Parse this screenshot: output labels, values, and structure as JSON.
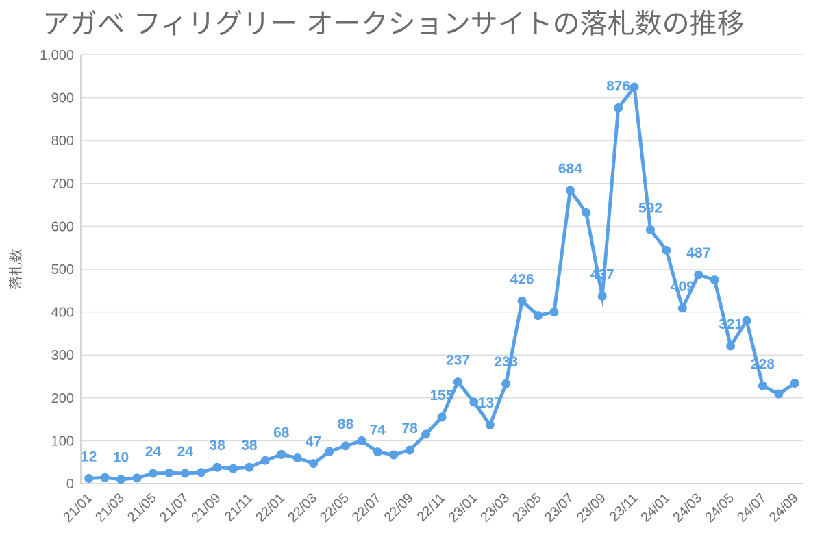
{
  "chart_data": {
    "type": "line",
    "title": "アガベ フィリグリー オークションサイトの落札数の推移",
    "xlabel": "",
    "ylabel": "落札数",
    "ylim": [
      0,
      1000
    ],
    "y_ticks": [
      "0",
      "100",
      "200",
      "300",
      "400",
      "500",
      "600",
      "700",
      "800",
      "900",
      "1,000"
    ],
    "grid": true,
    "color": "#58a0e5",
    "categories": [
      "21/01",
      "21/02",
      "21/03",
      "21/04",
      "21/05",
      "21/06",
      "21/07",
      "21/08",
      "21/09",
      "21/10",
      "21/11",
      "21/12",
      "22/01",
      "22/02",
      "22/03",
      "22/04",
      "22/05",
      "22/06",
      "22/07",
      "22/08",
      "22/09",
      "22/10",
      "22/11",
      "22/12",
      "23/01",
      "23/02",
      "23/03",
      "23/04",
      "23/05",
      "23/06",
      "23/07",
      "23/08",
      "23/09",
      "23/10",
      "23/11",
      "23/12",
      "24/01",
      "24/02",
      "24/03",
      "24/04",
      "24/05",
      "24/06",
      "24/07",
      "24/08",
      "24/09"
    ],
    "x_tick_labels": [
      "21/01",
      "21/03",
      "21/05",
      "21/07",
      "21/09",
      "21/11",
      "22/01",
      "22/03",
      "22/05",
      "22/07",
      "22/09",
      "22/11",
      "23/01",
      "23/03",
      "23/05",
      "23/07",
      "23/09",
      "23/11",
      "24/01",
      "24/03",
      "24/05",
      "24/07",
      "24/09"
    ],
    "series": [
      {
        "name": "落札数",
        "values": [
          12,
          14,
          10,
          13,
          24,
          25,
          24,
          26,
          38,
          35,
          38,
          54,
          68,
          60,
          47,
          75,
          88,
          100,
          74,
          67,
          78,
          115,
          155,
          237,
          190,
          137,
          233,
          426,
          392,
          400,
          684,
          632,
          437,
          876,
          925,
          592,
          544,
          409,
          487,
          475,
          321,
          380,
          228,
          209,
          234
        ]
      }
    ],
    "data_labels": [
      {
        "index": 0,
        "text": "12"
      },
      {
        "index": 2,
        "text": "10"
      },
      {
        "index": 4,
        "text": "24"
      },
      {
        "index": 6,
        "text": "24"
      },
      {
        "index": 8,
        "text": "38"
      },
      {
        "index": 10,
        "text": "38"
      },
      {
        "index": 12,
        "text": "68"
      },
      {
        "index": 14,
        "text": "47"
      },
      {
        "index": 16,
        "text": "88"
      },
      {
        "index": 18,
        "text": "74"
      },
      {
        "index": 20,
        "text": "78"
      },
      {
        "index": 22,
        "text": "155"
      },
      {
        "index": 23,
        "text": "237"
      },
      {
        "index": 25,
        "text": "137"
      },
      {
        "index": 26,
        "text": "233"
      },
      {
        "index": 27,
        "text": "426"
      },
      {
        "index": 30,
        "text": "684"
      },
      {
        "index": 32,
        "text": "437"
      },
      {
        "index": 33,
        "text": "876"
      },
      {
        "index": 35,
        "text": "592"
      },
      {
        "index": 37,
        "text": "409"
      },
      {
        "index": 38,
        "text": "487"
      },
      {
        "index": 40,
        "text": "321"
      },
      {
        "index": 42,
        "text": "228"
      }
    ]
  }
}
